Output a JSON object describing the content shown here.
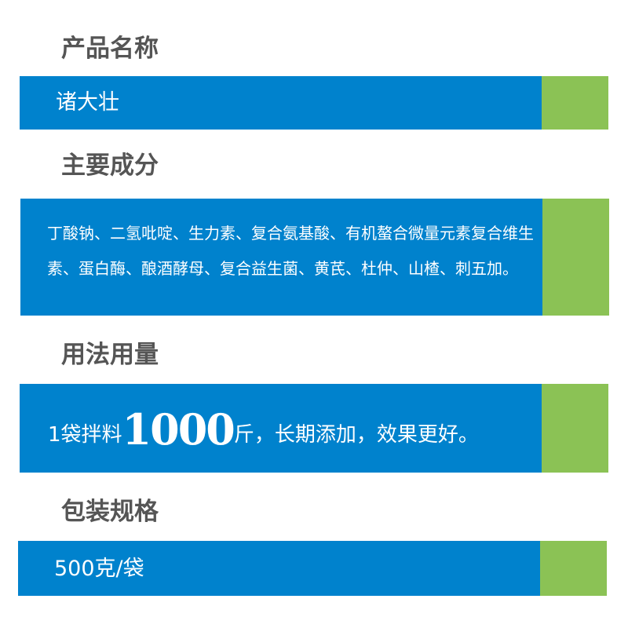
{
  "colors": {
    "bar": "#0082cd",
    "accent": "#8bc255",
    "heading": "#555555"
  },
  "sections": [
    {
      "heading": "产品名称",
      "content": "诸大壮"
    },
    {
      "heading": "主要成分",
      "content": "丁酸钠、二氢吡啶、生力素、复合氨基酸、有机螯合微量元素复合维生素、蛋白酶、酿酒酵母、复合益生菌、黄芪、杜仲、山楂、刺五加。"
    },
    {
      "heading": "用法用量",
      "content_prefix": "1袋拌料",
      "content_big": "1000",
      "content_suffix": "斤，长期添加，效果更好。"
    },
    {
      "heading": "包装规格",
      "content": "500克/袋"
    }
  ]
}
